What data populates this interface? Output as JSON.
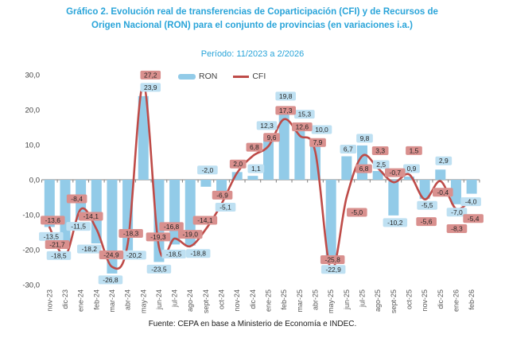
{
  "header": {
    "title": "Gráfico 2. Evolución real de transferencias de Coparticipación (CFI) y de Recursos de Origen Nacional (RON) para el conjunto de provincias (en variaciones i.a.)",
    "period": "Período: 11/2023 a 2/2026"
  },
  "legend": {
    "items": [
      {
        "label": "RON",
        "type": "bar",
        "color": "#92CBE8"
      },
      {
        "label": "CFI",
        "type": "line",
        "color": "#BE4B48"
      }
    ]
  },
  "footer": {
    "source": "Fuente: CEPA en base a Ministerio de Economía e INDEC."
  },
  "colors": {
    "title": "#29A4D9",
    "bar": "#92CBE8",
    "bar_label_bg": "#BEE0F2",
    "line": "#BE4B48",
    "line_label_bg": "#D9908E",
    "label_text": "#262626",
    "axis_text": "#595959",
    "tick_text": "#404040",
    "axis_line": "#808080"
  },
  "chart_data": {
    "type": "bar+line",
    "title": "Gráfico 2. Evolución real de transferencias de Coparticipación (CFI) y de Recursos de Origen Nacional (RON) para el conjunto de provincias (en variaciones i.a.)",
    "subtitle": "Período: 11/2023 a 2/2026",
    "categories": [
      "nov-23",
      "dic-23",
      "ene-24",
      "feb-24",
      "mar-24",
      "abr-24",
      "may-24",
      "jun-24",
      "jul-24",
      "ago-24",
      "sept-24",
      "oct-24",
      "nov-24",
      "dic-24",
      "ene-25",
      "feb-25",
      "mar-25",
      "abr-25",
      "may-25",
      "jun-25",
      "jul-25",
      "ago-25",
      "sept-25",
      "oct-25",
      "nov-25",
      "dic-25",
      "ene-26",
      "feb-26"
    ],
    "series": [
      {
        "name": "RON",
        "type": "bar",
        "color": "#92CBE8",
        "values": [
          -13.5,
          -18.5,
          -11.5,
          -18.2,
          -26.8,
          -20.2,
          23.9,
          -23.5,
          -18.5,
          -18.8,
          -2.0,
          -5.1,
          2.2,
          1.1,
          12.3,
          19.8,
          15.3,
          10.0,
          -22.9,
          6.7,
          9.8,
          2.5,
          -10.2,
          0.9,
          -5.5,
          2.9,
          -7.0,
          -4.0
        ],
        "unlabeled_indices": [
          12
        ]
      },
      {
        "name": "CFI",
        "type": "line",
        "color": "#BE4B48",
        "values": [
          -13.6,
          -21.7,
          -8.4,
          -14.1,
          -24.9,
          -18.3,
          27.2,
          -19.3,
          -16.8,
          -19.0,
          -14.1,
          -6.9,
          2.0,
          6.8,
          9.6,
          17.3,
          12.6,
          7.9,
          -25.8,
          -5.0,
          6.8,
          3.3,
          -0.7,
          1.5,
          -5.6,
          -0.4,
          -8.3,
          -5.4
        ],
        "unlabeled_indices": []
      }
    ],
    "xlabel": "",
    "ylabel": "",
    "ylim": [
      -30,
      30
    ],
    "y_tick_values": [
      30,
      20,
      10,
      0,
      -10,
      -20,
      -30
    ],
    "y_ticks": [
      "30,0",
      "20,0",
      "10,0",
      "0,0",
      "-10,0",
      "-20,0",
      "-30,0"
    ],
    "decimal_separator": ",",
    "grid": false,
    "legend_position": "top",
    "data_labels": true,
    "source": "Fuente: CEPA en base a Ministerio de Economía e INDEC."
  }
}
